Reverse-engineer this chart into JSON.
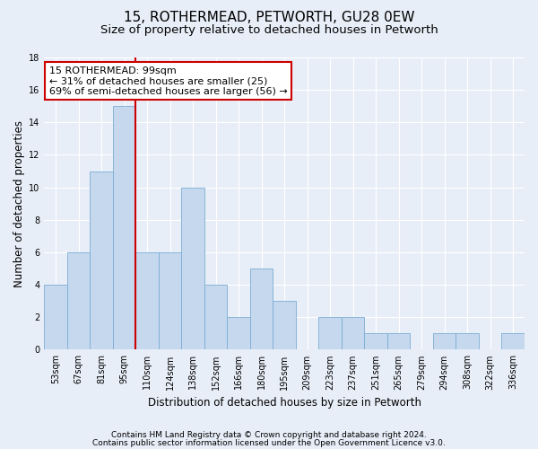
{
  "title": "15, ROTHERMEAD, PETWORTH, GU28 0EW",
  "subtitle": "Size of property relative to detached houses in Petworth",
  "xlabel": "Distribution of detached houses by size in Petworth",
  "ylabel": "Number of detached properties",
  "categories": [
    "53sqm",
    "67sqm",
    "81sqm",
    "95sqm",
    "110sqm",
    "124sqm",
    "138sqm",
    "152sqm",
    "166sqm",
    "180sqm",
    "195sqm",
    "209sqm",
    "223sqm",
    "237sqm",
    "251sqm",
    "265sqm",
    "279sqm",
    "294sqm",
    "308sqm",
    "322sqm",
    "336sqm"
  ],
  "values": [
    4,
    6,
    11,
    15,
    6,
    6,
    10,
    4,
    2,
    5,
    3,
    0,
    2,
    2,
    1,
    1,
    0,
    1,
    1,
    0,
    1
  ],
  "bar_color": "#c5d8ee",
  "bar_edge_color": "#7aadd4",
  "vline_x": 3.5,
  "vline_color": "#cc0000",
  "annotation_text": "15 ROTHERMEAD: 99sqm\n← 31% of detached houses are smaller (25)\n69% of semi-detached houses are larger (56) →",
  "annotation_box_color": "#ffffff",
  "annotation_box_edge": "#cc0000",
  "ylim": [
    0,
    18
  ],
  "yticks": [
    0,
    2,
    4,
    6,
    8,
    10,
    12,
    14,
    16,
    18
  ],
  "footer_line1": "Contains HM Land Registry data © Crown copyright and database right 2024.",
  "footer_line2": "Contains public sector information licensed under the Open Government Licence v3.0.",
  "background_color": "#e8eef8",
  "plot_bg_color": "#e8eef8",
  "grid_color": "#ffffff",
  "title_fontsize": 11,
  "subtitle_fontsize": 9.5,
  "axis_label_fontsize": 8.5,
  "tick_fontsize": 7,
  "footer_fontsize": 6.5,
  "annotation_fontsize": 8
}
